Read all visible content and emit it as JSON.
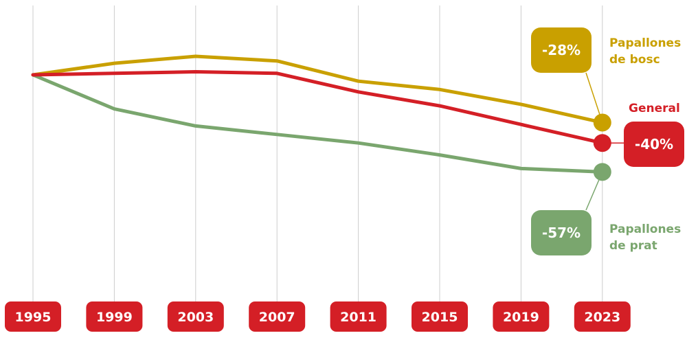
{
  "chart_data": {
    "type": "line",
    "x": [
      "1995",
      "1999",
      "2003",
      "2007",
      "2011",
      "2015",
      "2019",
      "2023"
    ],
    "series": [
      {
        "key": "bosc",
        "name_lines": [
          "Papallones",
          "de bosc"
        ],
        "color": "#c9a000",
        "values": [
          0,
          6.8,
          10.9,
          8.2,
          -3.7,
          -8.6,
          -17.3,
          -28
        ],
        "change_label": "-28%"
      },
      {
        "key": "general",
        "name_lines": [
          "General"
        ],
        "color": "#d41f26",
        "values": [
          0,
          0.9,
          1.8,
          0.9,
          -10,
          -18.2,
          -29.1,
          -40
        ],
        "change_label": "-40%"
      },
      {
        "key": "prat",
        "name_lines": [
          "Papallones",
          "de prat"
        ],
        "color": "#7aa66e",
        "values": [
          0,
          -20,
          -30,
          -35,
          -40,
          -47,
          -55,
          -57
        ],
        "change_label": "-57%"
      }
    ],
    "ylim": [
      -105,
      30
    ],
    "grid": "vertical",
    "xlabel": "",
    "ylabel": ""
  },
  "colors": {
    "year_badge": "#d41f26",
    "grid": "#cccccc"
  }
}
